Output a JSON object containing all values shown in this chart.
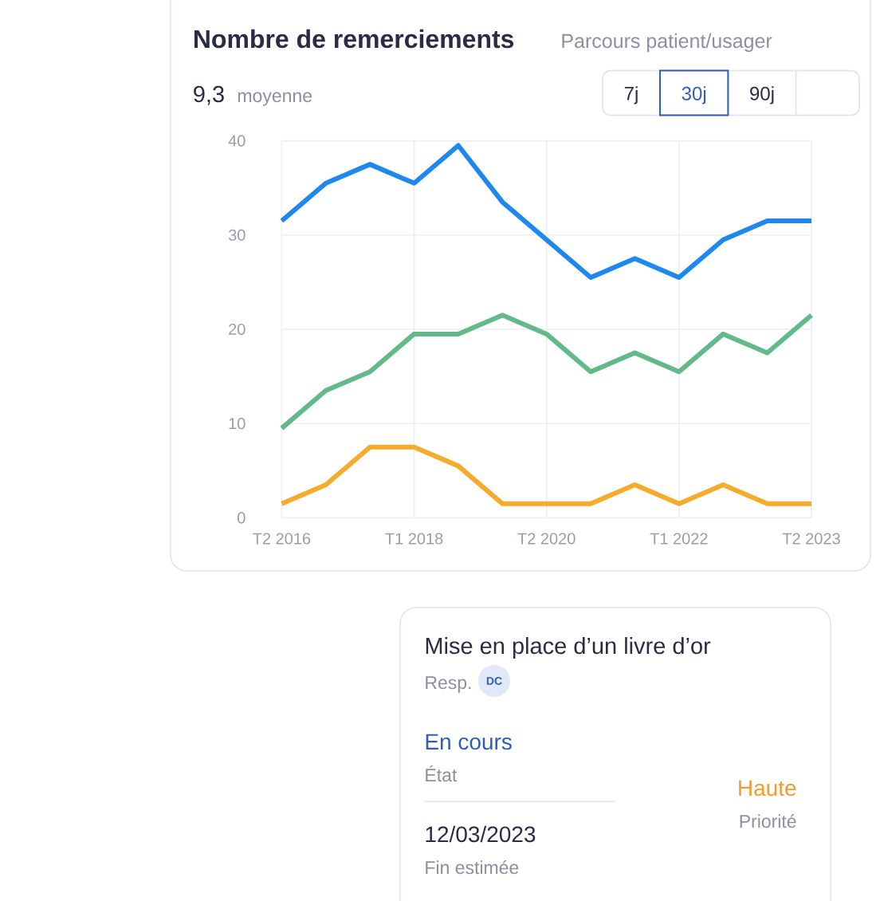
{
  "chart_data": [
    {
      "type": "line",
      "title": "Nombre de remerciements",
      "subtitle": "Parcours patient/usager",
      "annotations": [
        "9,3",
        "moyenne",
        "7j",
        "30j",
        "90j"
      ],
      "categories": [
        "T2 2016",
        null,
        null,
        "T1 2018",
        null,
        null,
        "T2 2020",
        null,
        null,
        "T1 2022",
        null,
        null,
        "T2 2023"
      ],
      "series": [
        {
          "color": "#1e88ef",
          "values": [
            31.5,
            35.5,
            37.5,
            35.5,
            39.5,
            33.5,
            29.5,
            25.5,
            27.5,
            25.5,
            29.5,
            31.5,
            31.5
          ]
        },
        {
          "color": "#63b98a",
          "values": [
            9.5,
            13.5,
            15.5,
            19.5,
            19.5,
            21.5,
            19.5,
            15.5,
            17.5,
            15.5,
            19.5,
            17.5,
            21.5
          ]
        },
        {
          "color": "#f5ab2b",
          "values": [
            1.5,
            3.5,
            7.5,
            7.5,
            5.5,
            1.5,
            1.5,
            1.5,
            3.5,
            1.5,
            3.5,
            1.5,
            1.5
          ]
        }
      ],
      "ylim": [
        0,
        40
      ],
      "yticks": [
        0,
        10,
        20,
        30,
        40
      ],
      "grid": true
    },
    {
      "type": "other",
      "title": "Mise en place d’un livre d’or",
      "annotations": [
        "Resp.",
        "DC",
        "En cours",
        "État",
        "12/03/2023",
        "Fin estimée",
        "Haute",
        "Priorité"
      ]
    }
  ]
}
